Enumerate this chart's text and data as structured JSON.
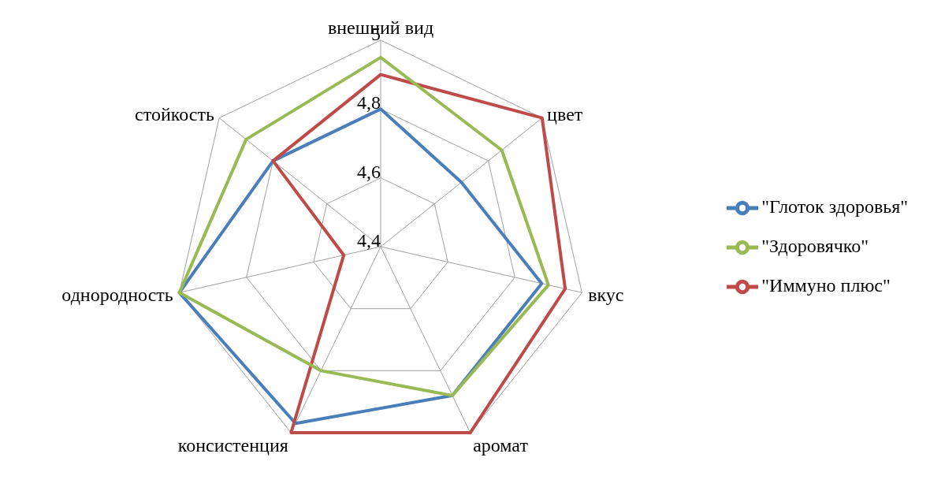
{
  "chart_data": {
    "type": "radar",
    "categories": [
      "внешний вид",
      "цвет",
      "вкус",
      "аромат",
      "консистенция",
      "однородность",
      "стойкость"
    ],
    "series": [
      {
        "name": "\"Глоток здоровья\"",
        "color": "#4a7ebb",
        "values": [
          4.8,
          4.7,
          4.88,
          4.88,
          4.97,
          5,
          4.8
        ]
      },
      {
        "name": "\"Иммуно плюс\"",
        "color": "#be4b48",
        "values": [
          4.9,
          5,
          4.95,
          5,
          5,
          4.51,
          4.8
        ]
      },
      {
        "name": "\"Здоровячко\"",
        "color": "#98b954",
        "values": [
          4.95,
          4.85,
          4.9,
          4.88,
          4.8,
          5,
          4.9
        ]
      }
    ],
    "ylim": [
      4.4,
      5
    ],
    "yticks": [
      {
        "value": 4.4,
        "label": "4,4"
      },
      {
        "value": 4.6,
        "label": "4,6"
      },
      {
        "value": 4.8,
        "label": "4,8"
      },
      5
    ],
    "grid": true,
    "legend": "right",
    "marker": "none"
  }
}
